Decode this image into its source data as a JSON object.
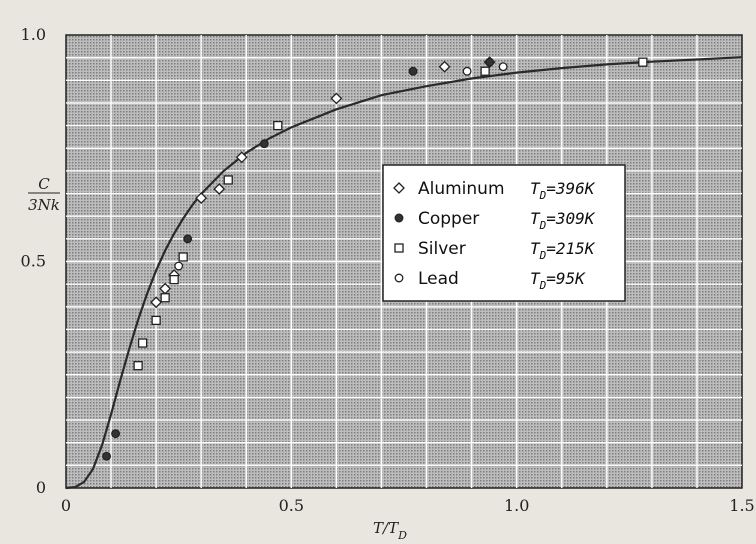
{
  "chart_data": {
    "type": "scatter",
    "title": "",
    "xlabel": "T/T",
    "xlabel_sub": "D",
    "ylabel_num": "C",
    "ylabel_den": "3Nk",
    "xlim": [
      0,
      1.5
    ],
    "ylim": [
      0,
      1.0
    ],
    "x_ticks": [
      0,
      0.5,
      1.0,
      1.5
    ],
    "x_tick_labels": [
      "0",
      "0.5",
      "1.0",
      "1.5"
    ],
    "y_ticks": [
      0,
      0.5,
      1.0
    ],
    "y_tick_labels": [
      "0",
      "0.5",
      "1.0"
    ],
    "grid": true,
    "legend_position": "center-right",
    "curve": {
      "x": [
        0,
        0.02,
        0.04,
        0.06,
        0.08,
        0.1,
        0.12,
        0.14,
        0.16,
        0.18,
        0.2,
        0.22,
        0.24,
        0.26,
        0.28,
        0.3,
        0.35,
        0.4,
        0.45,
        0.5,
        0.6,
        0.7,
        0.8,
        0.9,
        1.0,
        1.1,
        1.2,
        1.3,
        1.4,
        1.5
      ],
      "y": [
        0,
        0.002,
        0.013,
        0.042,
        0.095,
        0.163,
        0.236,
        0.306,
        0.371,
        0.429,
        0.48,
        0.524,
        0.562,
        0.595,
        0.624,
        0.649,
        0.7,
        0.74,
        0.771,
        0.796,
        0.836,
        0.867,
        0.887,
        0.904,
        0.917,
        0.927,
        0.935,
        0.941,
        0.946,
        0.951
      ]
    },
    "series": [
      {
        "name": "Aluminum",
        "marker": "diamond",
        "td_label": "T",
        "td_sub": "D",
        "td_value": "=396K",
        "x": [
          0.2,
          0.22,
          0.24,
          0.3,
          0.34,
          0.39,
          0.6,
          0.84,
          0.94
        ],
        "y": [
          0.41,
          0.44,
          0.47,
          0.64,
          0.66,
          0.73,
          0.86,
          0.93,
          0.94
        ]
      },
      {
        "name": "Copper",
        "marker": "filled-circle",
        "td_label": "T",
        "td_sub": "D",
        "td_value": "=309K",
        "x": [
          0.09,
          0.11,
          0.27,
          0.44,
          0.77,
          0.94
        ],
        "y": [
          0.07,
          0.12,
          0.55,
          0.76,
          0.92,
          0.94
        ]
      },
      {
        "name": "Silver",
        "marker": "square",
        "td_label": "T",
        "td_sub": "D",
        "td_value": "=215K",
        "x": [
          0.16,
          0.17,
          0.2,
          0.22,
          0.24,
          0.26,
          0.36,
          0.47,
          0.93,
          1.28
        ],
        "y": [
          0.27,
          0.32,
          0.37,
          0.42,
          0.46,
          0.51,
          0.68,
          0.8,
          0.92,
          0.94
        ]
      },
      {
        "name": "Lead",
        "marker": "open-circle",
        "td_label": "T",
        "td_sub": "D",
        "td_value": "=95K",
        "x": [
          0.25,
          0.89,
          0.97
        ],
        "y": [
          0.49,
          0.92,
          0.93
        ]
      }
    ]
  }
}
